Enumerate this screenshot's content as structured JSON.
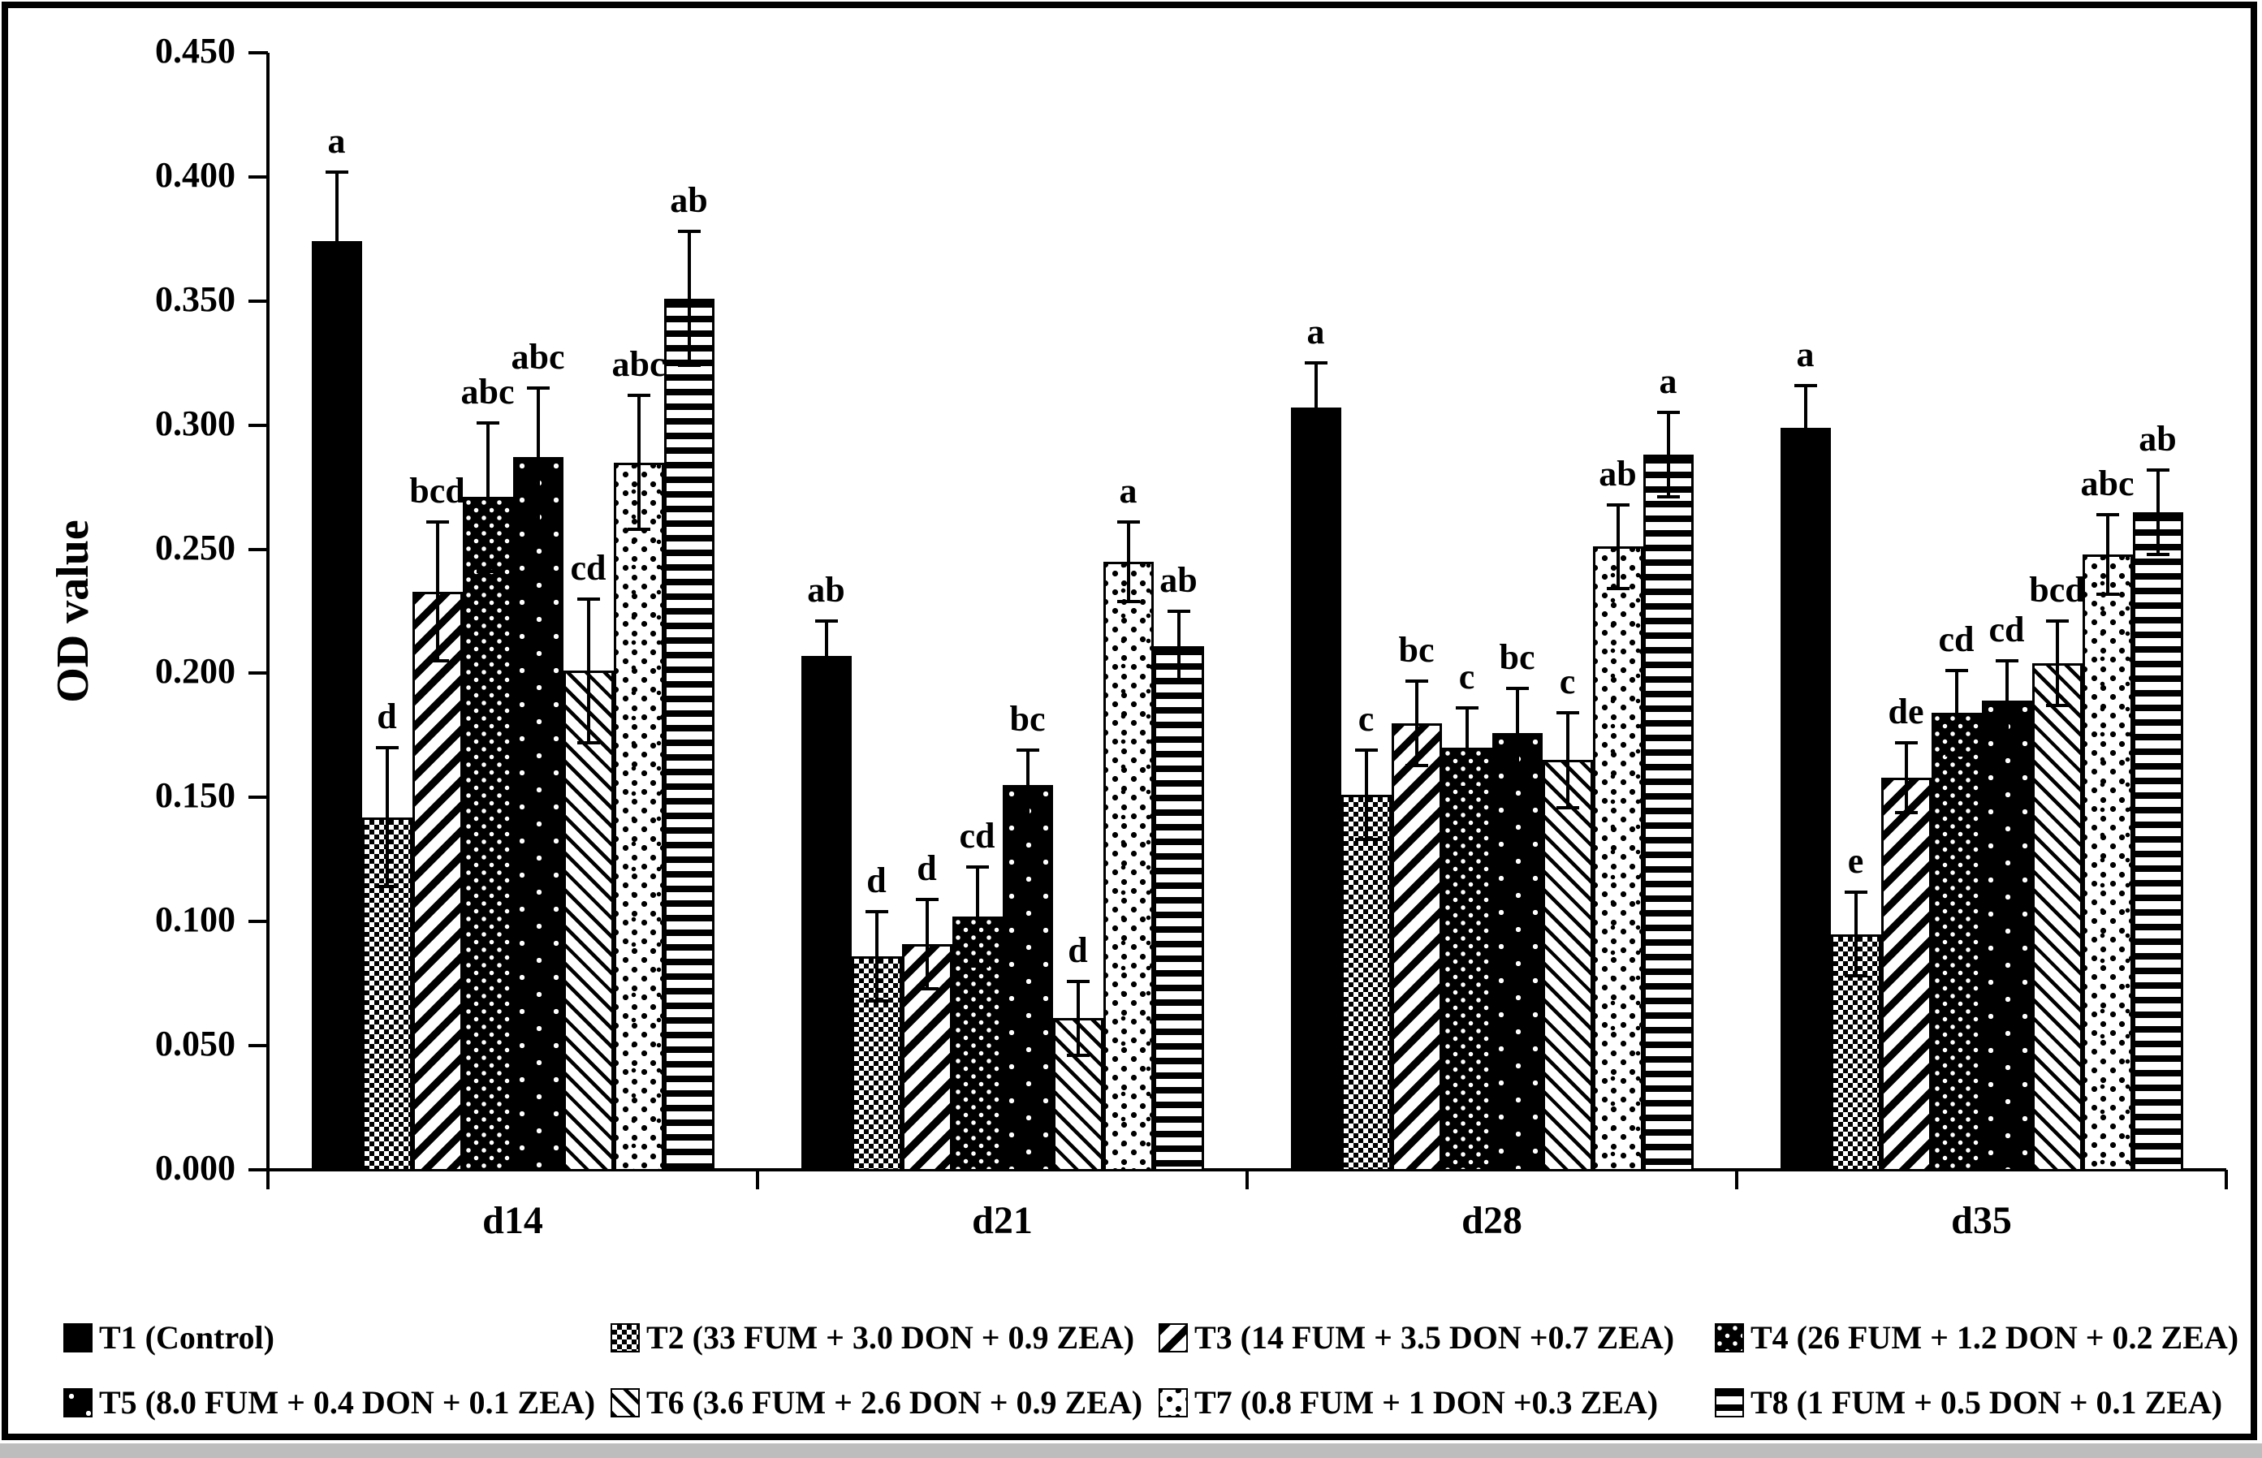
{
  "chart_data": {
    "type": "bar",
    "title": "",
    "ylabel": "OD value",
    "xlabel": "",
    "ylim": [
      0,
      0.45
    ],
    "ytick_step": 0.05,
    "ytick_labels": [
      "0.000",
      "0.050",
      "0.100",
      "0.150",
      "0.200",
      "0.250",
      "0.300",
      "0.350",
      "0.400",
      "0.450"
    ],
    "grid": false,
    "error_bars": true,
    "legend_position": "bottom",
    "legend_rows": 2,
    "categories": [
      "d14",
      "d21",
      "d28",
      "d35"
    ],
    "series": [
      {
        "name": "T1 (Control)",
        "pattern": "solid-black",
        "values": [
          0.374,
          0.207,
          0.307,
          0.299
        ],
        "errors": [
          0.028,
          0.014,
          0.018,
          0.017
        ],
        "sig_letters": [
          "a",
          "ab",
          "a",
          "a"
        ]
      },
      {
        "name": "T2 (33 FUM + 3.0 DON + 0.9 ZEA)",
        "pattern": "fine-checker-mesh",
        "values": [
          0.142,
          0.086,
          0.151,
          0.095
        ],
        "errors": [
          0.028,
          0.018,
          0.018,
          0.017
        ],
        "sig_letters": [
          "d",
          "d",
          "c",
          "e"
        ]
      },
      {
        "name": "T3 (14 FUM + 3.5 DON +0.7 ZEA)",
        "pattern": "wide-up-diagonal-stripes",
        "values": [
          0.233,
          0.091,
          0.18,
          0.158
        ],
        "errors": [
          0.028,
          0.018,
          0.017,
          0.014
        ],
        "sig_letters": [
          "bcd",
          "d",
          "bc",
          "de"
        ]
      },
      {
        "name": "T4 (26 FUM + 1.2 DON + 0.2 ZEA)",
        "pattern": "dense-white-dots-on-black",
        "values": [
          0.271,
          0.102,
          0.17,
          0.184
        ],
        "errors": [
          0.03,
          0.02,
          0.016,
          0.017
        ],
        "sig_letters": [
          "abc",
          "cd",
          "c",
          "cd"
        ]
      },
      {
        "name": "T5 (8.0 FUM + 0.4 DON + 0.1 ZEA)",
        "pattern": "sparse-white-dots-on-black",
        "values": [
          0.287,
          0.155,
          0.176,
          0.189
        ],
        "errors": [
          0.028,
          0.014,
          0.018,
          0.016
        ],
        "sig_letters": [
          "abc",
          "bc",
          "bc",
          "cd"
        ]
      },
      {
        "name": "T6 (3.6 FUM + 2.6 DON + 0.9 ZEA)",
        "pattern": "thin-down-diagonal-stripes",
        "values": [
          0.201,
          0.061,
          0.165,
          0.204
        ],
        "errors": [
          0.029,
          0.015,
          0.019,
          0.017
        ],
        "sig_letters": [
          "cd",
          "d",
          "c",
          "bcd"
        ]
      },
      {
        "name": "T7 (0.8 FUM + 1 DON +0.3 ZEA)",
        "pattern": "coarse-dissolve-dots",
        "values": [
          0.285,
          0.245,
          0.251,
          0.248
        ],
        "errors": [
          0.027,
          0.016,
          0.017,
          0.016
        ],
        "sig_letters": [
          "abc",
          "a",
          "ab",
          "abc"
        ]
      },
      {
        "name": "T8 (1 FUM + 0.5 DON + 0.1 ZEA)",
        "pattern": "horizontal-stripes",
        "values": [
          0.351,
          0.211,
          0.288,
          0.265
        ],
        "errors": [
          0.027,
          0.014,
          0.017,
          0.017
        ],
        "sig_letters": [
          "ab",
          "ab",
          "a",
          "ab"
        ]
      }
    ]
  }
}
